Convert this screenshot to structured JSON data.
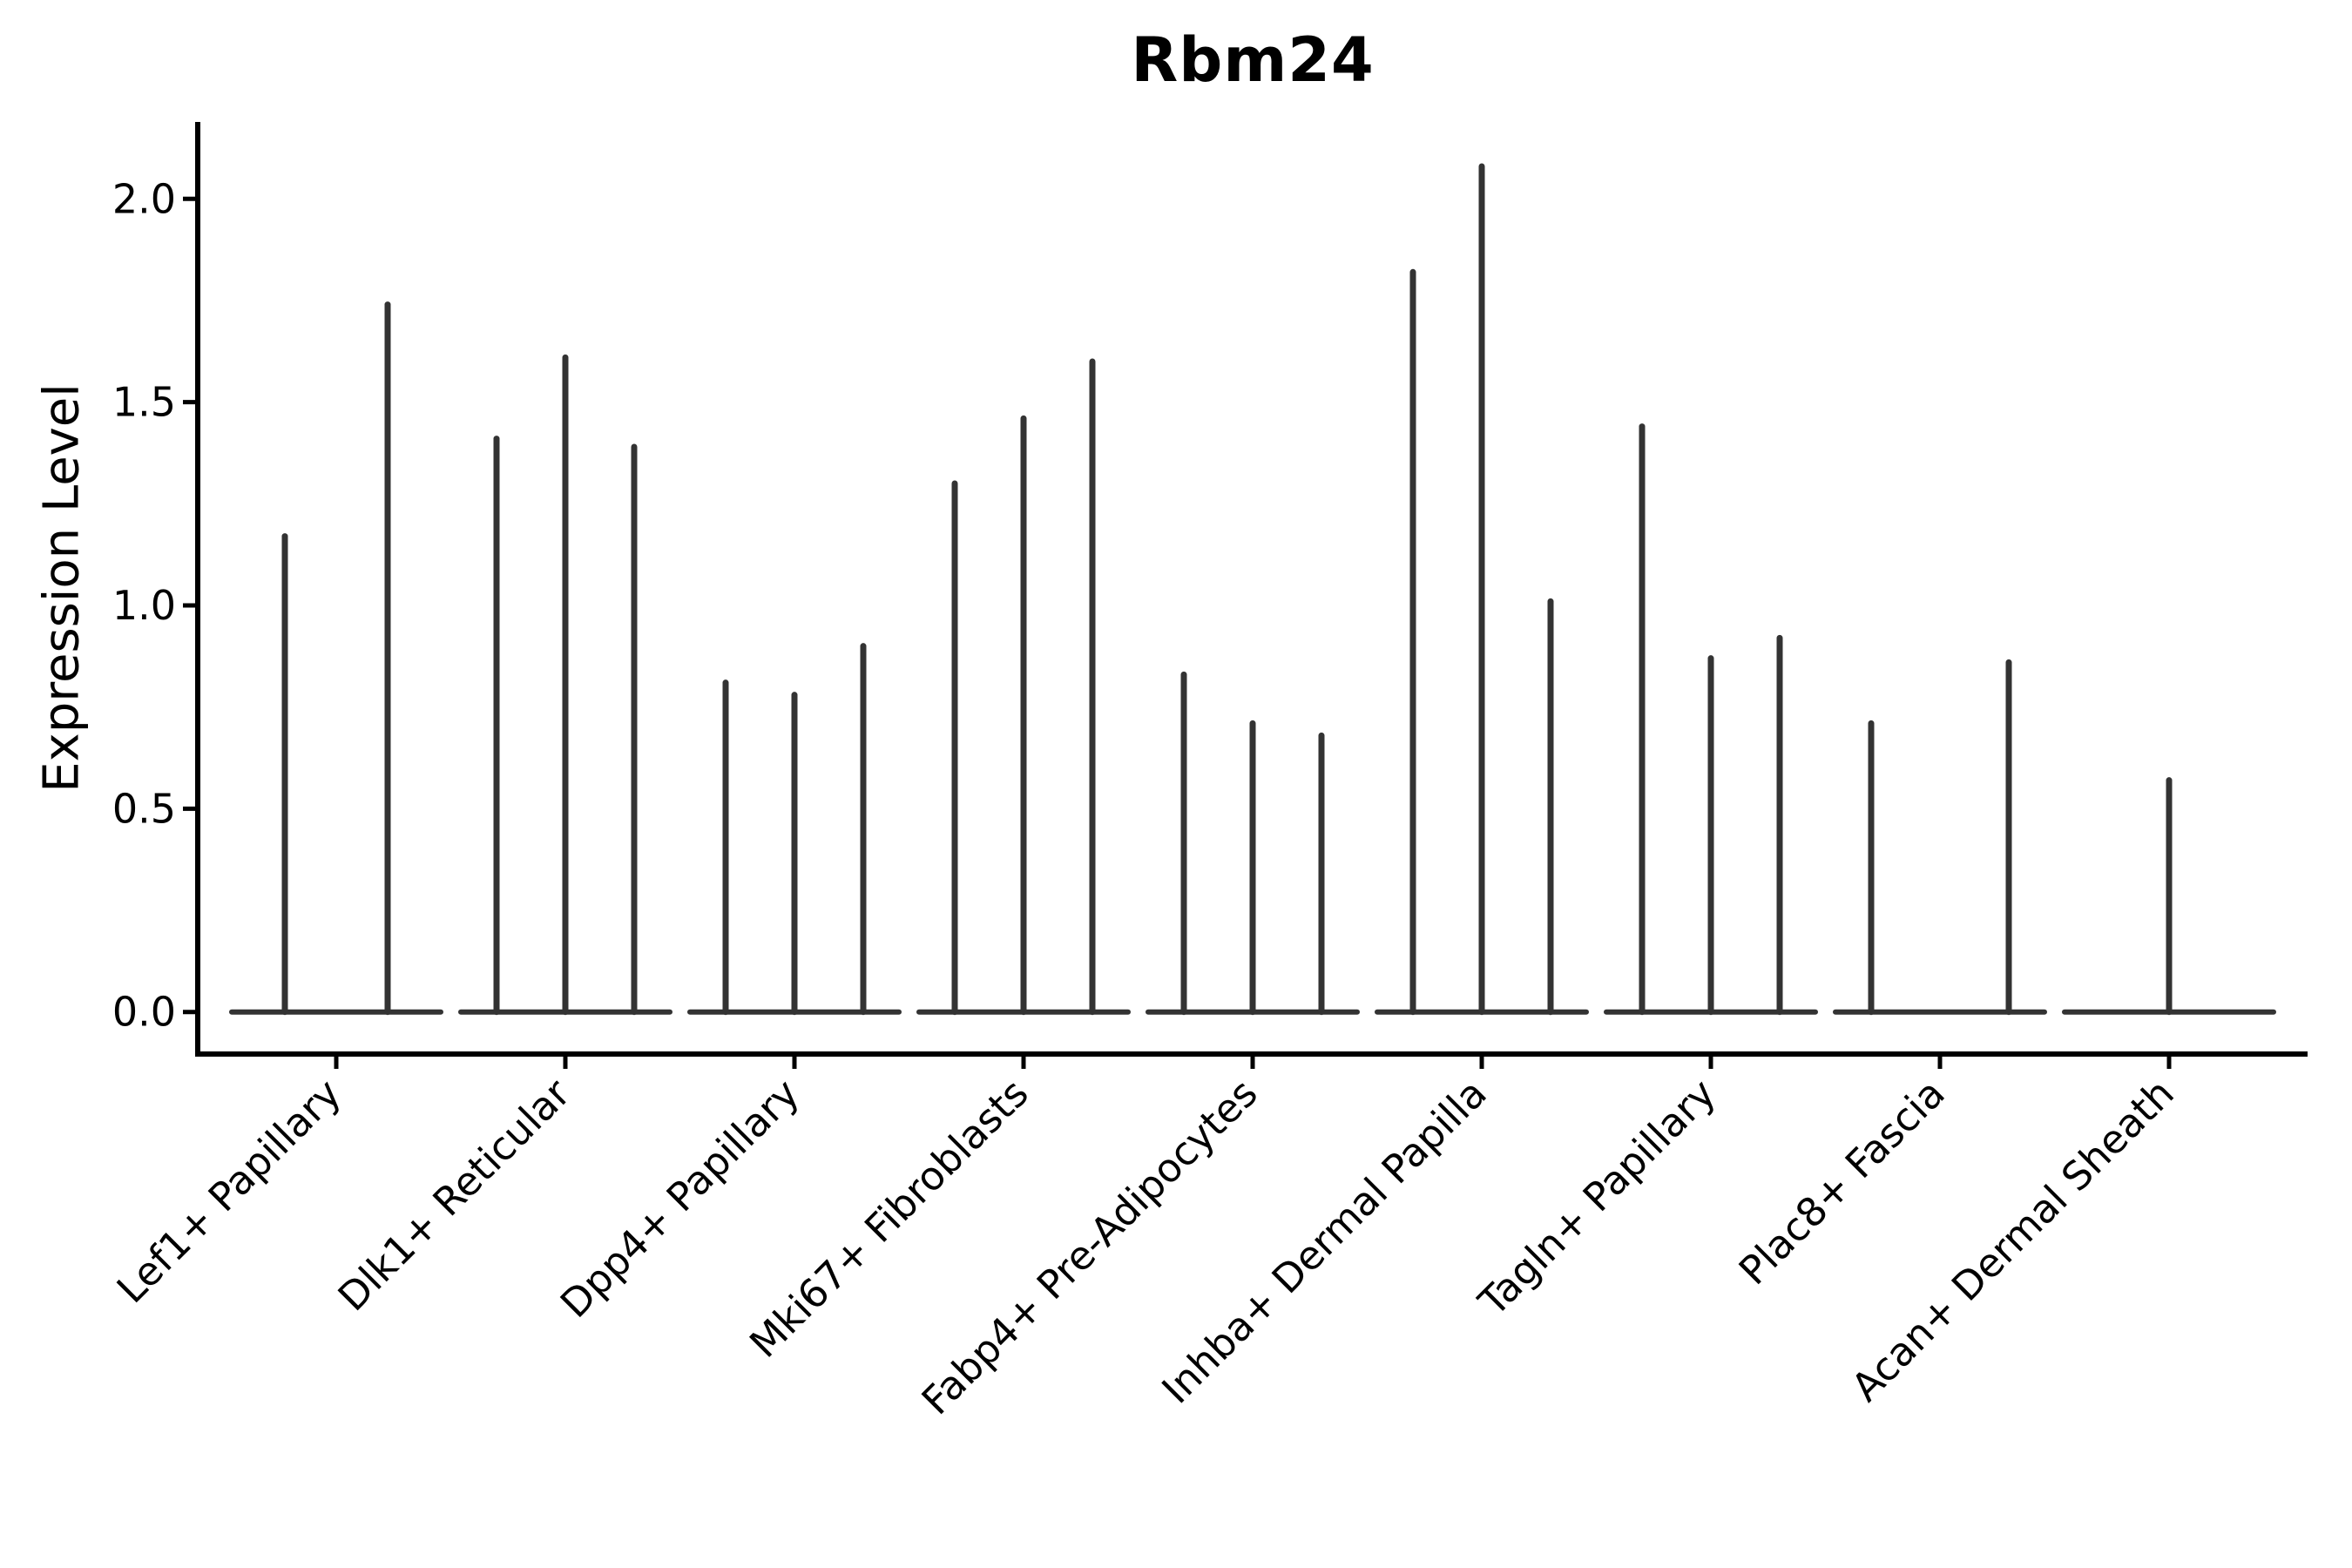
{
  "figure": {
    "title": "Rbm24"
  },
  "axes": {
    "ylabel": "Expression Level",
    "ytick_labels": [
      "0.0",
      "0.5",
      "1.0",
      "1.5",
      "2.0"
    ]
  },
  "chart_data": {
    "type": "violin",
    "title": "Rbm24",
    "xlabel": "",
    "ylabel": "Expression Level",
    "yticks": [
      0.0,
      0.5,
      1.0,
      1.5,
      2.0
    ],
    "ylim": [
      -0.1,
      2.19
    ],
    "grid": false,
    "legend_position": "none",
    "style_note": "Seurat-style single-cell violin plot; each violin collapses to a flat base at 0 with a thin vertical spike up to its maximum expression value",
    "categories": [
      "Lef1+ Papillary",
      "Dlk1+ Reticular",
      "Dpp4+ Papillary",
      "Mki67+ Fibroblasts",
      "Fabp4+ Pre-Adipocytes",
      "Inhba+ Dermal Papilla",
      "Tagln+ Papillary",
      "Plac8+ Fascia",
      "Acan+ Dermal Sheath"
    ],
    "groups": [
      {
        "label": "Lef1+ Papillary",
        "violins": [
          {
            "offset": -59,
            "max": 1.17
          },
          {
            "offset": 59,
            "max": 1.74
          }
        ]
      },
      {
        "label": "Dlk1+ Reticular",
        "violins": [
          {
            "offset": -79,
            "max": 1.41
          },
          {
            "offset": 0,
            "max": 1.61
          },
          {
            "offset": 79,
            "max": 1.39
          }
        ]
      },
      {
        "label": "Dpp4+ Papillary",
        "violins": [
          {
            "offset": -79,
            "max": 0.81
          },
          {
            "offset": 0,
            "max": 0.78
          },
          {
            "offset": 79,
            "max": 0.9
          }
        ]
      },
      {
        "label": "Mki67+ Fibroblasts",
        "violins": [
          {
            "offset": -79,
            "max": 1.3
          },
          {
            "offset": 0,
            "max": 1.46
          },
          {
            "offset": 79,
            "max": 1.6
          }
        ]
      },
      {
        "label": "Fabp4+ Pre-Adipocytes",
        "violins": [
          {
            "offset": -79,
            "max": 0.83
          },
          {
            "offset": 0,
            "max": 0.71
          },
          {
            "offset": 79,
            "max": 0.68
          }
        ]
      },
      {
        "label": "Inhba+ Dermal Papilla",
        "violins": [
          {
            "offset": -79,
            "max": 1.82
          },
          {
            "offset": 0,
            "max": 2.08
          },
          {
            "offset": 79,
            "max": 1.01
          }
        ]
      },
      {
        "label": "Tagln+ Papillary",
        "violins": [
          {
            "offset": -79,
            "max": 1.44
          },
          {
            "offset": 0,
            "max": 0.87
          },
          {
            "offset": 79,
            "max": 0.92
          }
        ]
      },
      {
        "label": "Plac8+ Fascia",
        "violins": [
          {
            "offset": -79,
            "max": 0.71
          },
          {
            "offset": 0,
            "max": 0
          },
          {
            "offset": 79,
            "max": 0.86
          }
        ]
      },
      {
        "label": "Acan+ Dermal Sheath",
        "violins": [
          {
            "offset": 0,
            "max": 0.57
          }
        ]
      }
    ],
    "colors": {
      "violin_line": "#333333",
      "axis": "#000000",
      "text": "#000000",
      "background": "#ffffff"
    }
  }
}
